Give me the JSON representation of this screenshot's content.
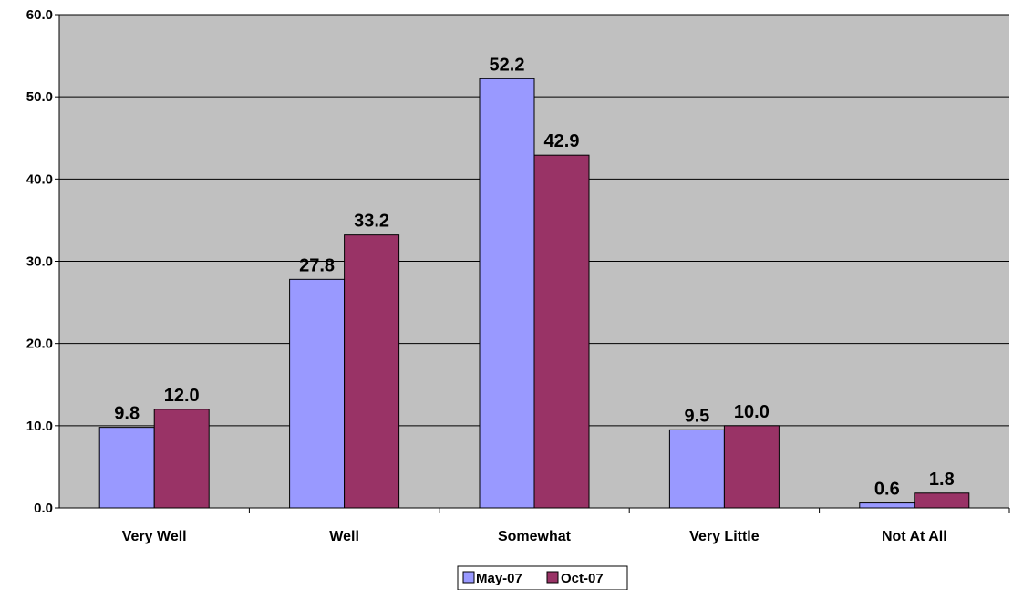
{
  "chart_data": {
    "type": "bar",
    "title": "",
    "xlabel": "",
    "ylabel": "",
    "categories": [
      "Very Well",
      "Well",
      "Somewhat",
      "Very Little",
      "Not At All"
    ],
    "series": [
      {
        "name": "May-07",
        "values": [
          9.8,
          27.8,
          52.2,
          9.5,
          0.6
        ],
        "color": "#9999ff"
      },
      {
        "name": "Oct-07",
        "values": [
          12.0,
          33.2,
          42.9,
          10.0,
          1.8
        ],
        "color": "#993366"
      }
    ],
    "ylim": [
      0,
      60
    ],
    "yticks": [
      "0.0",
      "10.0",
      "20.0",
      "30.0",
      "40.0",
      "50.0",
      "60.0"
    ],
    "data_labels": [
      [
        "9.8",
        "27.8",
        "52.2",
        "9.5",
        "0.6"
      ],
      [
        "12.0",
        "33.2",
        "42.9",
        "10.0",
        "1.8"
      ]
    ],
    "grid": true,
    "legend_position": "bottom",
    "plot_background": "#c0c0c0"
  }
}
